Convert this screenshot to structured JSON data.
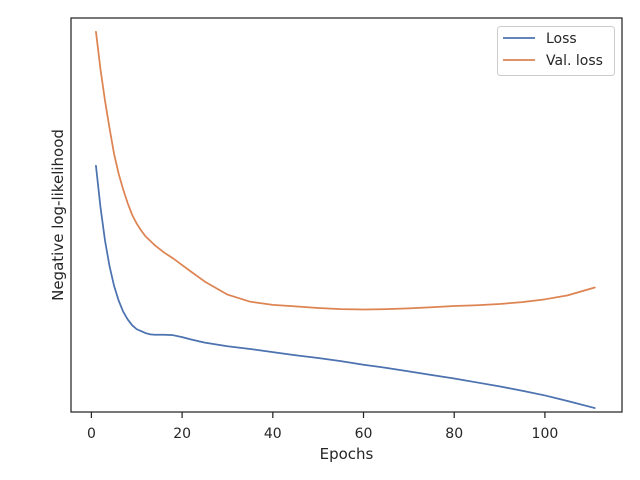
{
  "chart_data": {
    "type": "line",
    "title": "",
    "xlabel": "Epochs",
    "ylabel": "Negative log-likelihood",
    "xlim": [
      -4.5,
      117
    ],
    "ylim": [
      0,
      1
    ],
    "x_ticks": [
      0,
      20,
      40,
      60,
      80,
      100
    ],
    "y_ticks_shown": false,
    "grid": false,
    "legend_position": "top-right",
    "series": [
      {
        "name": "Loss",
        "color": "#4c72b0",
        "x": [
          1,
          2,
          3,
          4,
          5,
          6,
          7,
          8,
          9,
          10,
          11,
          12,
          13,
          14,
          16,
          18,
          20,
          22,
          25,
          30,
          35,
          40,
          45,
          50,
          55,
          60,
          65,
          70,
          75,
          80,
          85,
          90,
          95,
          100,
          105,
          111
        ],
        "y": [
          0.625,
          0.52,
          0.435,
          0.37,
          0.32,
          0.283,
          0.255,
          0.235,
          0.22,
          0.21,
          0.205,
          0.2,
          0.197,
          0.196,
          0.196,
          0.195,
          0.19,
          0.184,
          0.176,
          0.167,
          0.16,
          0.152,
          0.144,
          0.137,
          0.129,
          0.12,
          0.112,
          0.103,
          0.094,
          0.085,
          0.075,
          0.065,
          0.054,
          0.042,
          0.028,
          0.01
        ]
      },
      {
        "name": "Val. loss",
        "color": "#dd8452",
        "x": [
          1,
          2,
          3,
          4,
          5,
          6,
          7,
          8,
          9,
          10,
          11,
          12,
          14,
          16,
          18,
          20,
          22,
          25,
          30,
          35,
          40,
          45,
          50,
          55,
          60,
          65,
          70,
          75,
          80,
          85,
          90,
          95,
          100,
          105,
          111
        ],
        "y": [
          0.965,
          0.87,
          0.79,
          0.72,
          0.655,
          0.605,
          0.565,
          0.53,
          0.5,
          0.478,
          0.46,
          0.445,
          0.423,
          0.405,
          0.39,
          0.373,
          0.356,
          0.331,
          0.298,
          0.28,
          0.272,
          0.268,
          0.264,
          0.261,
          0.26,
          0.261,
          0.263,
          0.266,
          0.269,
          0.271,
          0.274,
          0.279,
          0.286,
          0.296,
          0.316
        ]
      }
    ]
  }
}
